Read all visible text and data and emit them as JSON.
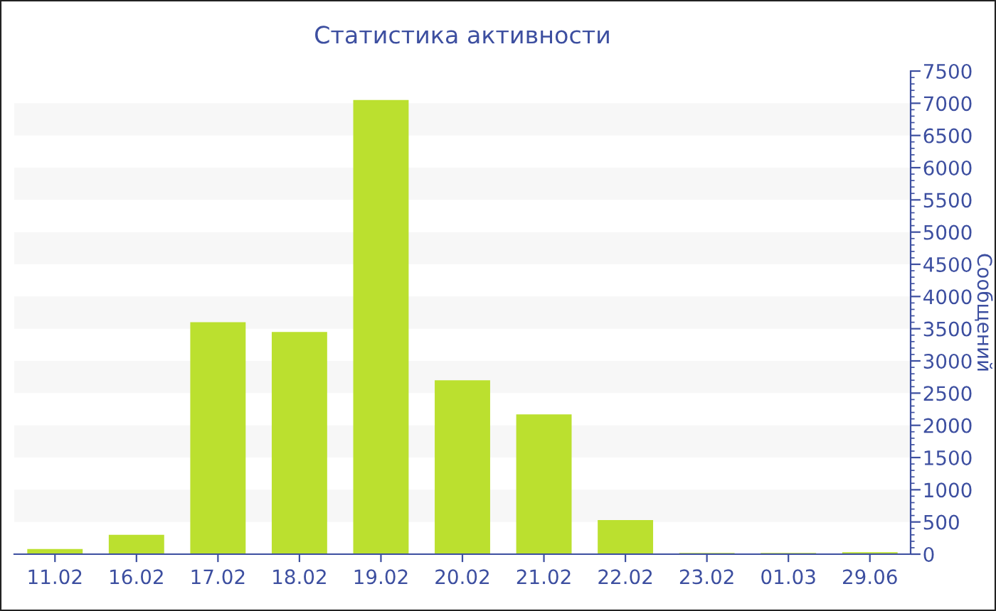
{
  "chart_data": {
    "type": "bar",
    "title": "Статистика активности",
    "ylabel": "Сообщений",
    "categories": [
      "11.02",
      "16.02",
      "17.02",
      "18.02",
      "19.02",
      "20.02",
      "21.02",
      "22.02",
      "23.02",
      "01.03",
      "29.06"
    ],
    "values": [
      80,
      300,
      3600,
      3450,
      7050,
      2700,
      2170,
      530,
      20,
      20,
      30
    ],
    "color": "#bbe02f",
    "ylim": [
      0,
      7500
    ],
    "yticks": [
      0,
      500,
      1000,
      1500,
      2000,
      2500,
      3000,
      3500,
      4000,
      4500,
      5000,
      5500,
      6000,
      6500,
      7000,
      7500
    ],
    "bands": [
      {
        "axis": "y",
        "from": 500,
        "to": 1000,
        "color": "#f7f7f7"
      },
      {
        "axis": "y",
        "from": 1500,
        "to": 2000,
        "color": "#f7f7f7"
      },
      {
        "axis": "y",
        "from": 2500,
        "to": 3000,
        "color": "#f7f7f7"
      },
      {
        "axis": "y",
        "from": 3500,
        "to": 4000,
        "color": "#f7f7f7"
      },
      {
        "axis": "y",
        "from": 4500,
        "to": 5000,
        "color": "#f7f7f7"
      },
      {
        "axis": "y",
        "from": 5500,
        "to": 6000,
        "color": "#f7f7f7"
      },
      {
        "axis": "y",
        "from": 6500,
        "to": 7000,
        "color": "#f7f7f7"
      }
    ]
  }
}
